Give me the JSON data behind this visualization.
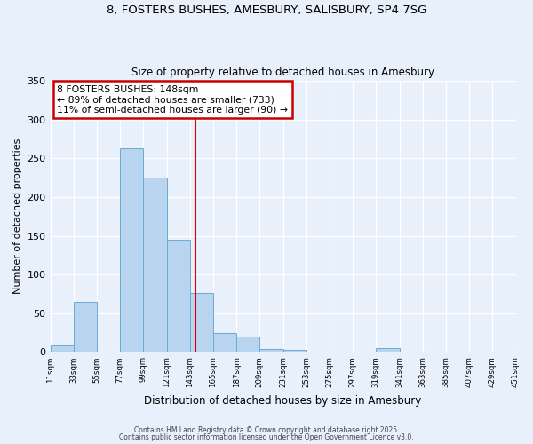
{
  "title": "8, FOSTERS BUSHES, AMESBURY, SALISBURY, SP4 7SG",
  "subtitle": "Size of property relative to detached houses in Amesbury",
  "xlabel": "Distribution of detached houses by size in Amesbury",
  "ylabel": "Number of detached properties",
  "bar_color": "#b8d4ee",
  "bar_edge_color": "#6aaad4",
  "background_color": "#e8f0fb",
  "grid_color": "#ffffff",
  "bin_edges": [
    11,
    33,
    55,
    77,
    99,
    121,
    143,
    165,
    187,
    209,
    231,
    253,
    275,
    297,
    319,
    341,
    363,
    385,
    407,
    429,
    451
  ],
  "bin_counts": [
    8,
    65,
    0,
    263,
    225,
    145,
    76,
    24,
    20,
    4,
    3,
    0,
    0,
    0,
    5,
    0,
    0,
    0,
    0,
    0
  ],
  "vline_x": 148,
  "vline_color": "#dd0000",
  "annotation_title": "8 FOSTERS BUSHES: 148sqm",
  "annotation_line1": "← 89% of detached houses are smaller (733)",
  "annotation_line2": "11% of semi-detached houses are larger (90) →",
  "annotation_box_color": "#ffffff",
  "annotation_box_edge": "#cc0000",
  "ylim": [
    0,
    350
  ],
  "yticks": [
    0,
    50,
    100,
    150,
    200,
    250,
    300,
    350
  ],
  "tick_labels": [
    "11sqm",
    "33sqm",
    "55sqm",
    "77sqm",
    "99sqm",
    "121sqm",
    "143sqm",
    "165sqm",
    "187sqm",
    "209sqm",
    "231sqm",
    "253sqm",
    "275sqm",
    "297sqm",
    "319sqm",
    "341sqm",
    "363sqm",
    "385sqm",
    "407sqm",
    "429sqm",
    "451sqm"
  ],
  "footer1": "Contains HM Land Registry data © Crown copyright and database right 2025.",
  "footer2": "Contains public sector information licensed under the Open Government Licence v3.0."
}
